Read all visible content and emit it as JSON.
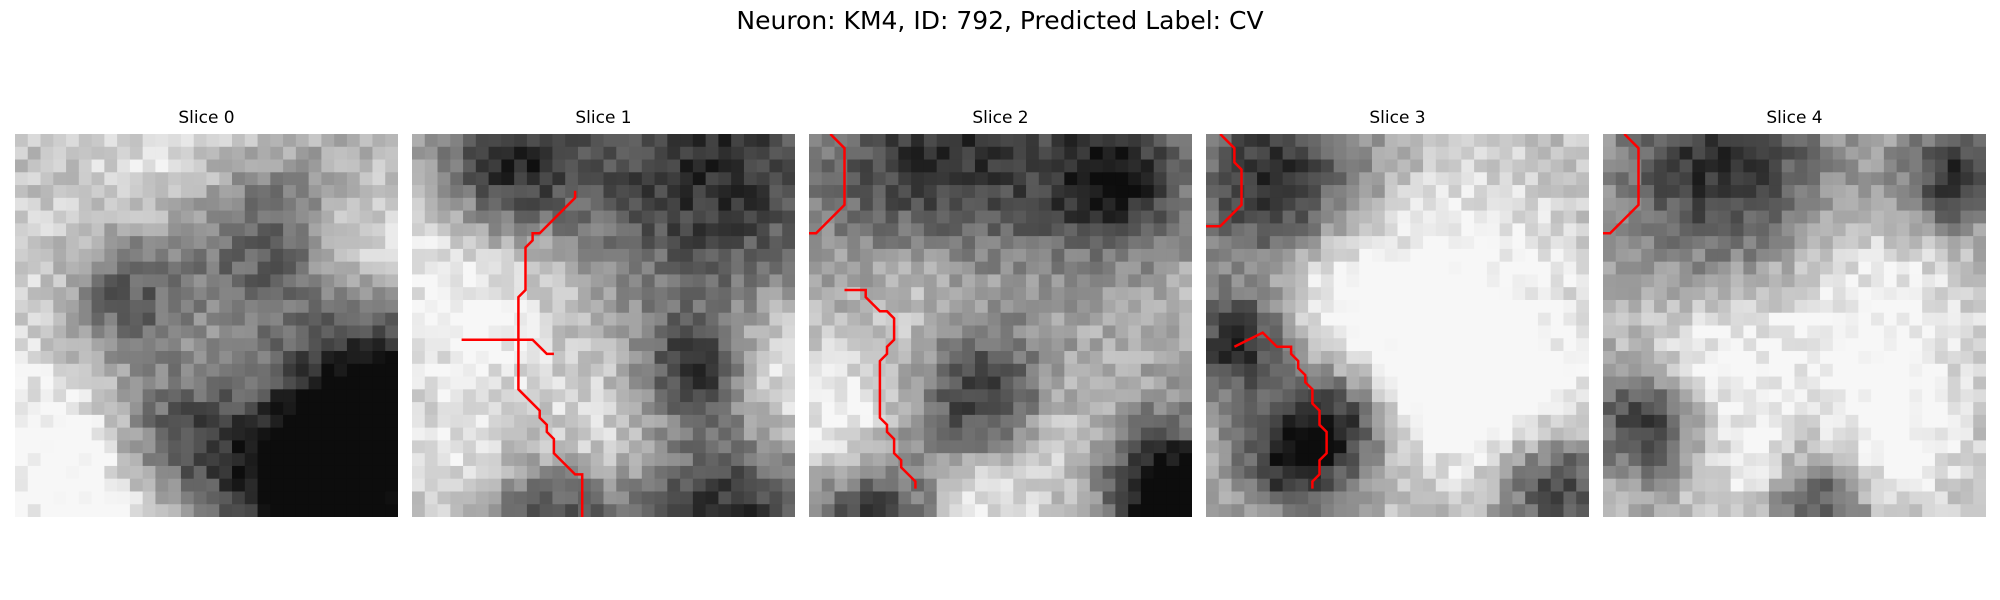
{
  "figure": {
    "title": "Neuron: KM4, ID: 792, Predicted Label: CV"
  },
  "panels": [
    {
      "title": "Slice 0",
      "contour_color": "#ff0000",
      "contours": [],
      "dark_regions": [
        [
          27,
          29,
          7
        ],
        [
          19,
          7,
          5
        ],
        [
          7,
          12,
          4
        ],
        [
          28,
          19,
          5
        ],
        [
          22,
          26,
          4
        ],
        [
          12,
          24,
          4
        ]
      ],
      "light_regions": [
        [
          14,
          3,
          6
        ],
        [
          26,
          8,
          4
        ],
        [
          3,
          24,
          6
        ],
        [
          9,
          29,
          5
        ],
        [
          3,
          11,
          4
        ]
      ]
    },
    {
      "title": "Slice 1",
      "contour_color": "#ff0000",
      "contours": [
        [
          [
            7,
            29
          ],
          [
            17,
            29
          ],
          [
            19,
            31
          ],
          [
            20,
            31
          ]
        ],
        [
          [
            23,
            8
          ],
          [
            23,
            9
          ],
          [
            18,
            14
          ],
          [
            17,
            14
          ],
          [
            17,
            15
          ],
          [
            16,
            16
          ],
          [
            16,
            22
          ],
          [
            15,
            23
          ],
          [
            15,
            36
          ],
          [
            18,
            39
          ],
          [
            18,
            40
          ],
          [
            19,
            41
          ],
          [
            19,
            42
          ],
          [
            20,
            43
          ],
          [
            20,
            45
          ],
          [
            23,
            48
          ],
          [
            24,
            48
          ],
          [
            24,
            54
          ]
        ]
      ],
      "dark_regions": [
        [
          23,
          2,
          8
        ],
        [
          7,
          2,
          4
        ],
        [
          10,
          30,
          5
        ],
        [
          24,
          30,
          5
        ],
        [
          22,
          18,
          3
        ]
      ],
      "light_regions": [
        [
          4,
          12,
          6
        ],
        [
          14,
          24,
          4
        ],
        [
          4,
          26,
          4
        ],
        [
          28,
          18,
          4
        ]
      ]
    },
    {
      "title": "Slice 2",
      "contour_color": "#ff0000",
      "contours": [
        [
          [
            3,
            0
          ],
          [
            5,
            2
          ],
          [
            5,
            10
          ],
          [
            1,
            14
          ],
          [
            0,
            14
          ]
        ],
        [
          [
            5,
            22
          ],
          [
            8,
            22
          ],
          [
            8,
            23
          ],
          [
            10,
            25
          ],
          [
            11,
            25
          ],
          [
            12,
            26
          ],
          [
            12,
            29
          ],
          [
            11,
            30
          ],
          [
            11,
            31
          ],
          [
            10,
            32
          ],
          [
            10,
            40
          ],
          [
            11,
            41
          ],
          [
            11,
            42
          ],
          [
            12,
            43
          ],
          [
            12,
            45
          ],
          [
            13,
            46
          ],
          [
            13,
            47
          ],
          [
            15,
            49
          ],
          [
            15,
            50
          ]
        ]
      ],
      "dark_regions": [
        [
          10,
          2,
          8
        ],
        [
          24,
          3,
          4
        ],
        [
          13,
          20,
          4
        ],
        [
          5,
          30,
          4
        ],
        [
          26,
          26,
          4
        ],
        [
          29,
          29,
          3
        ]
      ],
      "light_regions": [
        [
          9,
          12,
          5
        ],
        [
          20,
          24,
          4
        ],
        [
          2,
          22,
          4
        ],
        [
          12,
          28,
          3
        ]
      ]
    },
    {
      "title": "Slice 3",
      "contour_color": "#ff0000",
      "contours": [
        [
          [
            2,
            0
          ],
          [
            4,
            2
          ],
          [
            4,
            4
          ],
          [
            5,
            5
          ],
          [
            5,
            10
          ],
          [
            2,
            13
          ],
          [
            0,
            13
          ]
        ],
        [
          [
            4,
            30
          ],
          [
            8,
            28
          ],
          [
            10,
            30
          ],
          [
            12,
            30
          ],
          [
            12,
            31
          ],
          [
            13,
            32
          ],
          [
            13,
            33
          ],
          [
            14,
            34
          ],
          [
            14,
            35
          ],
          [
            15,
            36
          ],
          [
            15,
            38
          ],
          [
            16,
            39
          ],
          [
            16,
            41
          ],
          [
            17,
            42
          ],
          [
            17,
            45
          ],
          [
            16,
            46
          ],
          [
            16,
            48
          ],
          [
            15,
            49
          ],
          [
            15,
            50
          ]
        ]
      ],
      "dark_regions": [
        [
          5,
          3,
          5
        ],
        [
          2,
          16,
          3
        ],
        [
          10,
          22,
          3
        ],
        [
          27,
          27,
          3
        ],
        [
          6,
          25,
          3
        ]
      ],
      "light_regions": [
        [
          20,
          10,
          6
        ],
        [
          24,
          20,
          5
        ],
        [
          10,
          12,
          4
        ],
        [
          16,
          20,
          4
        ]
      ]
    },
    {
      "title": "Slice 4",
      "contour_color": "#ff0000",
      "contours": [
        [
          [
            3,
            0
          ],
          [
            5,
            2
          ],
          [
            5,
            10
          ],
          [
            1,
            14
          ],
          [
            0,
            14
          ]
        ]
      ],
      "dark_regions": [
        [
          9,
          2,
          6
        ],
        [
          27,
          3,
          3
        ],
        [
          3,
          22,
          3
        ],
        [
          16,
          28,
          3
        ]
      ],
      "light_regions": [
        [
          20,
          14,
          6
        ],
        [
          8,
          18,
          4
        ],
        [
          22,
          24,
          4
        ],
        [
          12,
          26,
          3
        ]
      ]
    }
  ]
}
